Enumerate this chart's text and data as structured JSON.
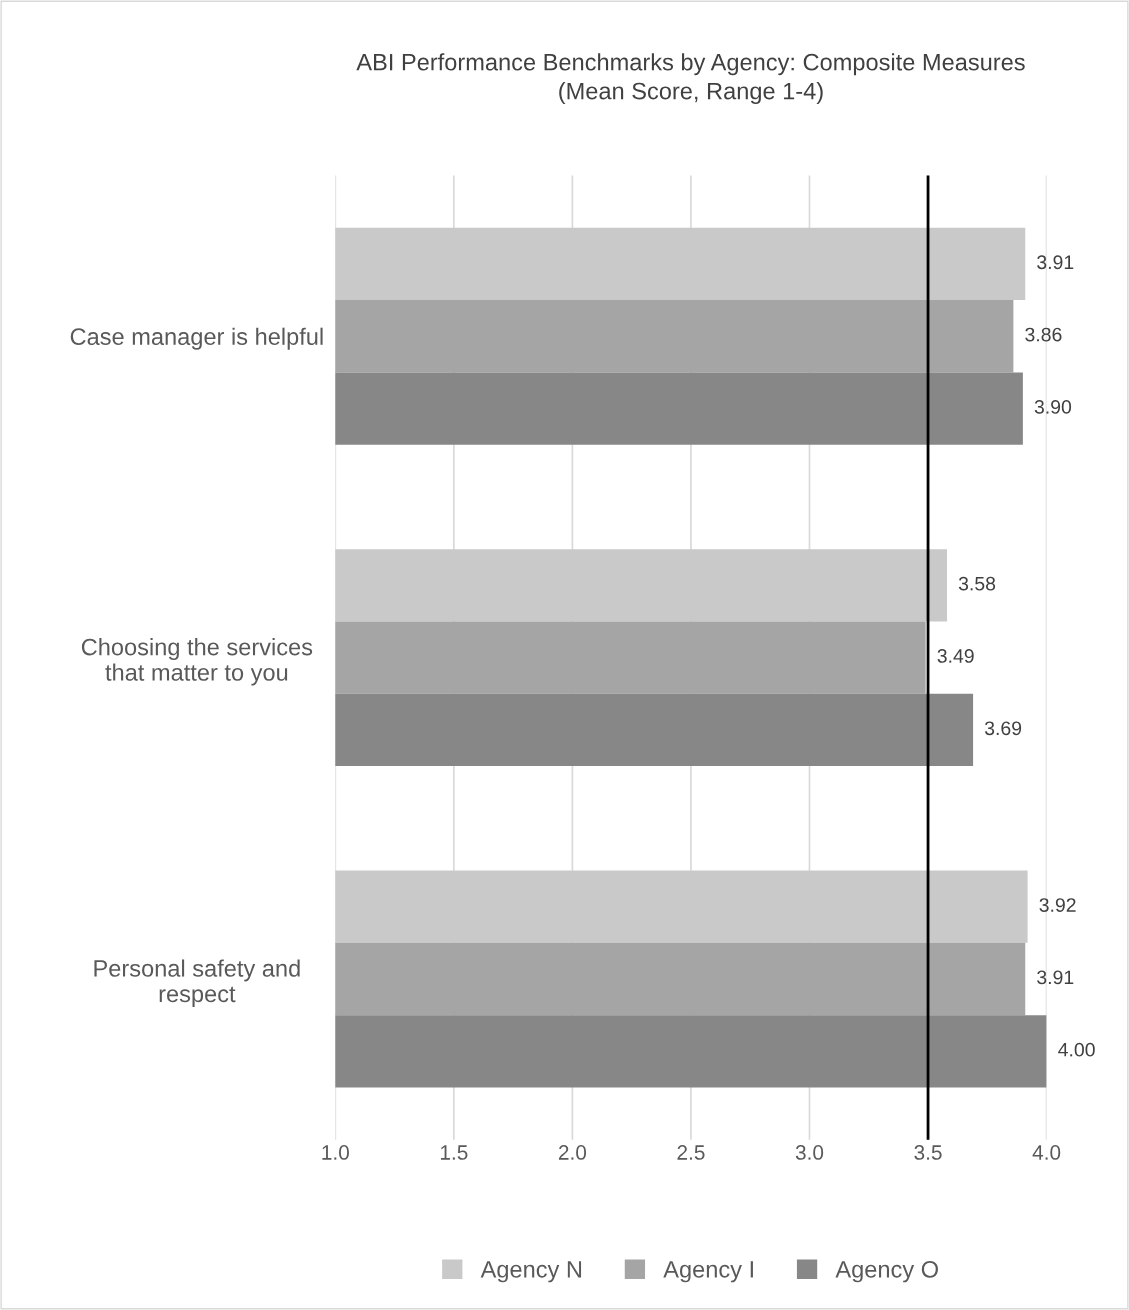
{
  "chart_data": {
    "type": "bar",
    "orientation": "horizontal",
    "title": "ABI Performance Benchmarks by Agency: Composite Measures\n(Mean Score, Range 1-4)",
    "categories": [
      "Case manager is helpful",
      "Choosing the services\nthat matter to you",
      "Personal safety and\nrespect"
    ],
    "series": [
      {
        "name": "Agency N",
        "color": "#c9c9c9",
        "values": [
          3.91,
          3.58,
          3.92
        ]
      },
      {
        "name": "Agency I",
        "color": "#a5a5a5",
        "values": [
          3.86,
          3.49,
          3.91
        ]
      },
      {
        "name": "Agency O",
        "color": "#878787",
        "values": [
          3.9,
          3.69,
          4.0
        ]
      }
    ],
    "value_labels": [
      [
        "3.91",
        "3.58",
        "3.92"
      ],
      [
        "3.86",
        "3.49",
        "3.91"
      ],
      [
        "3.90",
        "3.69",
        "4.00"
      ]
    ],
    "xlim": [
      1.0,
      4.0
    ],
    "xticks": [
      {
        "value": 1.0,
        "label": "1.0"
      },
      {
        "value": 1.5,
        "label": "1.5"
      },
      {
        "value": 2.0,
        "label": "2.0"
      },
      {
        "value": 2.5,
        "label": "2.5"
      },
      {
        "value": 3.0,
        "label": "3.0"
      },
      {
        "value": 3.5,
        "label": "3.5"
      },
      {
        "value": 4.0,
        "label": "4.0"
      }
    ],
    "ref_lines": [
      {
        "axis": "x",
        "value": 3.5,
        "color": "#000000"
      }
    ],
    "grid": "x",
    "legend": "bottom"
  }
}
